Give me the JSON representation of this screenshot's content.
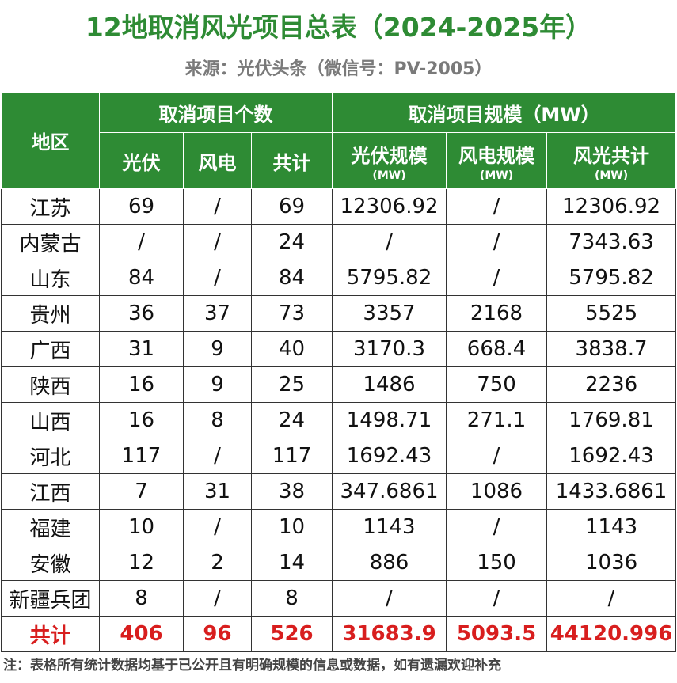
{
  "title": "12地取消风光项目总表（2024-2025年）",
  "source": "来源：光伏头条（微信号：PV-2005）",
  "table": {
    "header": {
      "region": "地区",
      "group_count": "取消项目个数",
      "group_scale": "取消项目规模（MW）",
      "pv": "光伏",
      "wind": "风电",
      "total": "共计",
      "pv_scale": "光伏规模",
      "wind_scale": "风电规模",
      "combined_scale": "风光共计",
      "unit": "(MW)"
    },
    "rows": [
      {
        "region": "江苏",
        "pv": "69",
        "wind": "/",
        "total": "69",
        "pv_scale": "12306.92",
        "wind_scale": "/",
        "combined_scale": "12306.92"
      },
      {
        "region": "内蒙古",
        "pv": "/",
        "wind": "/",
        "total": "24",
        "pv_scale": "/",
        "wind_scale": "/",
        "combined_scale": "7343.63"
      },
      {
        "region": "山东",
        "pv": "84",
        "wind": "/",
        "total": "84",
        "pv_scale": "5795.82",
        "wind_scale": "/",
        "combined_scale": "5795.82"
      },
      {
        "region": "贵州",
        "pv": "36",
        "wind": "37",
        "total": "73",
        "pv_scale": "3357",
        "wind_scale": "2168",
        "combined_scale": "5525"
      },
      {
        "region": "广西",
        "pv": "31",
        "wind": "9",
        "total": "40",
        "pv_scale": "3170.3",
        "wind_scale": "668.4",
        "combined_scale": "3838.7"
      },
      {
        "region": "陕西",
        "pv": "16",
        "wind": "9",
        "total": "25",
        "pv_scale": "1486",
        "wind_scale": "750",
        "combined_scale": "2236"
      },
      {
        "region": "山西",
        "pv": "16",
        "wind": "8",
        "total": "24",
        "pv_scale": "1498.71",
        "wind_scale": "271.1",
        "combined_scale": "1769.81"
      },
      {
        "region": "河北",
        "pv": "117",
        "wind": "/",
        "total": "117",
        "pv_scale": "1692.43",
        "wind_scale": "/",
        "combined_scale": "1692.43"
      },
      {
        "region": "江西",
        "pv": "7",
        "wind": "31",
        "total": "38",
        "pv_scale": "347.6861",
        "wind_scale": "1086",
        "combined_scale": "1433.6861"
      },
      {
        "region": "福建",
        "pv": "10",
        "wind": "/",
        "total": "10",
        "pv_scale": "1143",
        "wind_scale": "/",
        "combined_scale": "1143"
      },
      {
        "region": "安徽",
        "pv": "12",
        "wind": "2",
        "total": "14",
        "pv_scale": "886",
        "wind_scale": "150",
        "combined_scale": "1036"
      },
      {
        "region": "新疆兵团",
        "pv": "8",
        "wind": "/",
        "total": "8",
        "pv_scale": "/",
        "wind_scale": "/",
        "combined_scale": "/"
      }
    ],
    "total_row": {
      "region": "共计",
      "pv": "406",
      "wind": "96",
      "total": "526",
      "pv_scale": "31683.9",
      "wind_scale": "5093.5",
      "combined_scale": "44120.996"
    }
  },
  "note": "注：表格所有统计数据均基于已公开且有明确规模的信息或数据，如有遗漏欢迎补充",
  "colors": {
    "header_green": "#2e8b34",
    "title_green": "#2e8b34",
    "total_red": "#d81e1e",
    "source_gray": "#7a7a7a"
  }
}
